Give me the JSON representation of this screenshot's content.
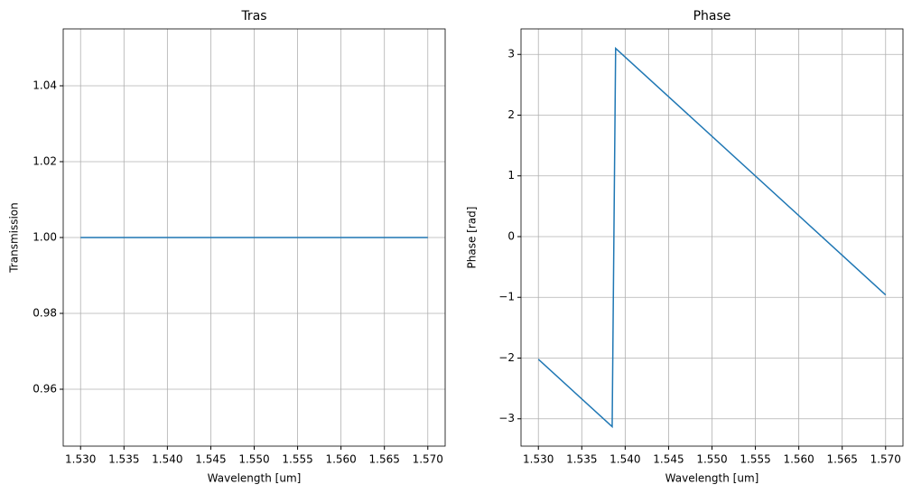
{
  "chart_data": [
    {
      "type": "line",
      "title": "Tras",
      "x_label": "Wavelength [um]",
      "y_label": "Transmission",
      "x": [
        1.53,
        1.57
      ],
      "values": [
        1.0,
        1.0
      ],
      "color": "#1f77b4",
      "xlim": [
        1.528,
        1.572
      ],
      "ylim": [
        0.945,
        1.055
      ],
      "grid": true,
      "xticks": [
        {
          "value": 1.53,
          "label": "1.530"
        },
        {
          "value": 1.535,
          "label": "1.535"
        },
        {
          "value": 1.54,
          "label": "1.540"
        },
        {
          "value": 1.545,
          "label": "1.545"
        },
        {
          "value": 1.55,
          "label": "1.550"
        },
        {
          "value": 1.555,
          "label": "1.555"
        },
        {
          "value": 1.56,
          "label": "1.560"
        },
        {
          "value": 1.565,
          "label": "1.565"
        },
        {
          "value": 1.57,
          "label": "1.570"
        }
      ],
      "yticks": [
        0.96,
        0.98,
        {
          "value": 1.0,
          "label": "1.00"
        },
        1.02,
        1.04
      ]
    },
    {
      "type": "line",
      "title": "Phase",
      "x_label": "Wavelength [um]",
      "y_label": "Phase [rad]",
      "x": [
        1.53,
        1.5385,
        1.5389,
        1.57
      ],
      "values": [
        -2.02,
        -3.13,
        3.1,
        -0.96
      ],
      "color": "#1f77b4",
      "xlim": [
        1.528,
        1.572
      ],
      "ylim": [
        -3.45,
        3.42
      ],
      "grid": true,
      "xticks": [
        {
          "value": 1.53,
          "label": "1.530"
        },
        {
          "value": 1.535,
          "label": "1.535"
        },
        {
          "value": 1.54,
          "label": "1.540"
        },
        {
          "value": 1.545,
          "label": "1.545"
        },
        {
          "value": 1.55,
          "label": "1.550"
        },
        {
          "value": 1.555,
          "label": "1.555"
        },
        {
          "value": 1.56,
          "label": "1.560"
        },
        {
          "value": 1.565,
          "label": "1.565"
        },
        {
          "value": 1.57,
          "label": "1.570"
        }
      ],
      "yticks": [
        {
          "value": -3,
          "label": "−3"
        },
        {
          "value": -2,
          "label": "−2"
        },
        {
          "value": -1,
          "label": "−1"
        },
        0,
        1,
        2,
        3
      ]
    }
  ]
}
